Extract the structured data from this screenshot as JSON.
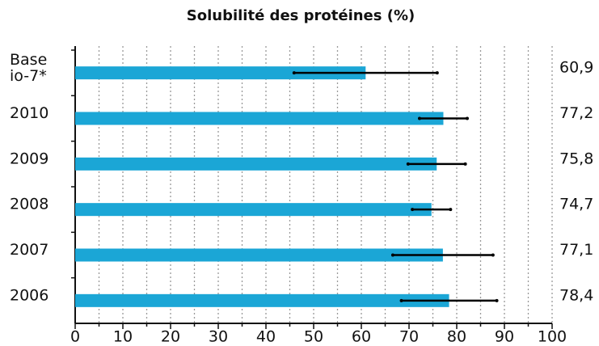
{
  "chart_data": {
    "type": "bar",
    "orientation": "horizontal",
    "title": "Solubilité des protéines (%)",
    "categories": [
      "Base\nio-7*",
      "2010",
      "2009",
      "2008",
      "2007",
      "2006"
    ],
    "values": [
      60.9,
      77.2,
      75.8,
      74.7,
      77.1,
      78.4
    ],
    "value_labels": [
      "60,9",
      "77,2",
      "75,8",
      "74,7",
      "77,1",
      "78,4"
    ],
    "errors": [
      15,
      5,
      6,
      4,
      10.5,
      10
    ],
    "color": "#1ba6d6",
    "xlim": [
      0,
      100
    ],
    "xticks": [
      0,
      10,
      20,
      30,
      40,
      50,
      60,
      70,
      80,
      90,
      100
    ],
    "xminorticks": [
      5,
      15,
      25,
      35,
      45,
      55,
      65,
      75,
      85,
      95
    ],
    "grid": true
  }
}
